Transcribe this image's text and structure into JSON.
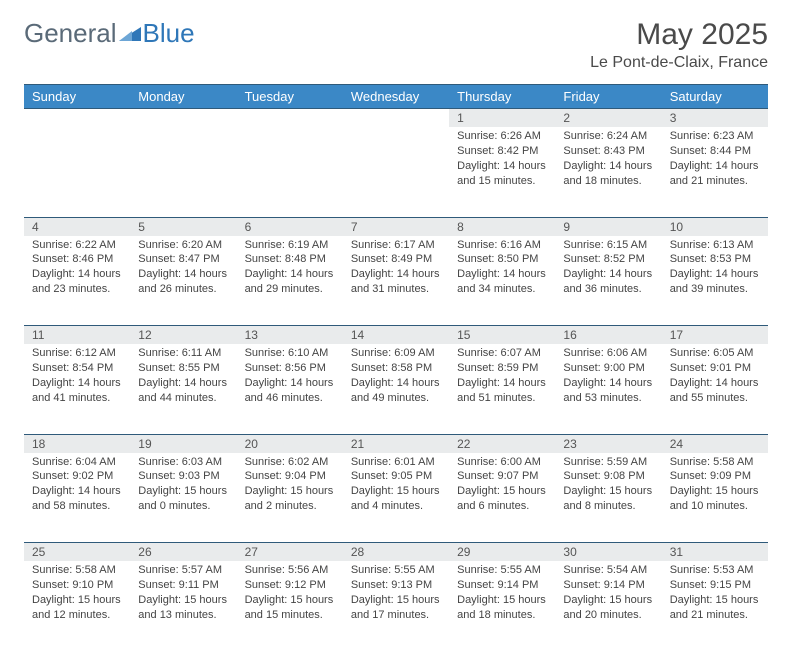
{
  "brand": {
    "part1": "General",
    "part2": "Blue"
  },
  "title": {
    "month": "May 2025",
    "location": "Le Pont-de-Claix, France"
  },
  "colors": {
    "header_bg": "#3b88c6",
    "header_text": "#ffffff",
    "daynum_bg": "#e9ebec",
    "border": "#2f5a7a",
    "body_text": "#333333",
    "logo_gray": "#5a6a78",
    "logo_blue": "#2f77b8",
    "page_bg": "#ffffff"
  },
  "weekdays": [
    "Sunday",
    "Monday",
    "Tuesday",
    "Wednesday",
    "Thursday",
    "Friday",
    "Saturday"
  ],
  "weeks": [
    [
      null,
      null,
      null,
      null,
      {
        "d": "1",
        "sr": "6:26 AM",
        "ss": "8:42 PM",
        "dl": "14 hours and 15 minutes."
      },
      {
        "d": "2",
        "sr": "6:24 AM",
        "ss": "8:43 PM",
        "dl": "14 hours and 18 minutes."
      },
      {
        "d": "3",
        "sr": "6:23 AM",
        "ss": "8:44 PM",
        "dl": "14 hours and 21 minutes."
      }
    ],
    [
      {
        "d": "4",
        "sr": "6:22 AM",
        "ss": "8:46 PM",
        "dl": "14 hours and 23 minutes."
      },
      {
        "d": "5",
        "sr": "6:20 AM",
        "ss": "8:47 PM",
        "dl": "14 hours and 26 minutes."
      },
      {
        "d": "6",
        "sr": "6:19 AM",
        "ss": "8:48 PM",
        "dl": "14 hours and 29 minutes."
      },
      {
        "d": "7",
        "sr": "6:17 AM",
        "ss": "8:49 PM",
        "dl": "14 hours and 31 minutes."
      },
      {
        "d": "8",
        "sr": "6:16 AM",
        "ss": "8:50 PM",
        "dl": "14 hours and 34 minutes."
      },
      {
        "d": "9",
        "sr": "6:15 AM",
        "ss": "8:52 PM",
        "dl": "14 hours and 36 minutes."
      },
      {
        "d": "10",
        "sr": "6:13 AM",
        "ss": "8:53 PM",
        "dl": "14 hours and 39 minutes."
      }
    ],
    [
      {
        "d": "11",
        "sr": "6:12 AM",
        "ss": "8:54 PM",
        "dl": "14 hours and 41 minutes."
      },
      {
        "d": "12",
        "sr": "6:11 AM",
        "ss": "8:55 PM",
        "dl": "14 hours and 44 minutes."
      },
      {
        "d": "13",
        "sr": "6:10 AM",
        "ss": "8:56 PM",
        "dl": "14 hours and 46 minutes."
      },
      {
        "d": "14",
        "sr": "6:09 AM",
        "ss": "8:58 PM",
        "dl": "14 hours and 49 minutes."
      },
      {
        "d": "15",
        "sr": "6:07 AM",
        "ss": "8:59 PM",
        "dl": "14 hours and 51 minutes."
      },
      {
        "d": "16",
        "sr": "6:06 AM",
        "ss": "9:00 PM",
        "dl": "14 hours and 53 minutes."
      },
      {
        "d": "17",
        "sr": "6:05 AM",
        "ss": "9:01 PM",
        "dl": "14 hours and 55 minutes."
      }
    ],
    [
      {
        "d": "18",
        "sr": "6:04 AM",
        "ss": "9:02 PM",
        "dl": "14 hours and 58 minutes."
      },
      {
        "d": "19",
        "sr": "6:03 AM",
        "ss": "9:03 PM",
        "dl": "15 hours and 0 minutes."
      },
      {
        "d": "20",
        "sr": "6:02 AM",
        "ss": "9:04 PM",
        "dl": "15 hours and 2 minutes."
      },
      {
        "d": "21",
        "sr": "6:01 AM",
        "ss": "9:05 PM",
        "dl": "15 hours and 4 minutes."
      },
      {
        "d": "22",
        "sr": "6:00 AM",
        "ss": "9:07 PM",
        "dl": "15 hours and 6 minutes."
      },
      {
        "d": "23",
        "sr": "5:59 AM",
        "ss": "9:08 PM",
        "dl": "15 hours and 8 minutes."
      },
      {
        "d": "24",
        "sr": "5:58 AM",
        "ss": "9:09 PM",
        "dl": "15 hours and 10 minutes."
      }
    ],
    [
      {
        "d": "25",
        "sr": "5:58 AM",
        "ss": "9:10 PM",
        "dl": "15 hours and 12 minutes."
      },
      {
        "d": "26",
        "sr": "5:57 AM",
        "ss": "9:11 PM",
        "dl": "15 hours and 13 minutes."
      },
      {
        "d": "27",
        "sr": "5:56 AM",
        "ss": "9:12 PM",
        "dl": "15 hours and 15 minutes."
      },
      {
        "d": "28",
        "sr": "5:55 AM",
        "ss": "9:13 PM",
        "dl": "15 hours and 17 minutes."
      },
      {
        "d": "29",
        "sr": "5:55 AM",
        "ss": "9:14 PM",
        "dl": "15 hours and 18 minutes."
      },
      {
        "d": "30",
        "sr": "5:54 AM",
        "ss": "9:14 PM",
        "dl": "15 hours and 20 minutes."
      },
      {
        "d": "31",
        "sr": "5:53 AM",
        "ss": "9:15 PM",
        "dl": "15 hours and 21 minutes."
      }
    ]
  ],
  "labels": {
    "sunrise": "Sunrise:",
    "sunset": "Sunset:",
    "daylight": "Daylight:"
  }
}
